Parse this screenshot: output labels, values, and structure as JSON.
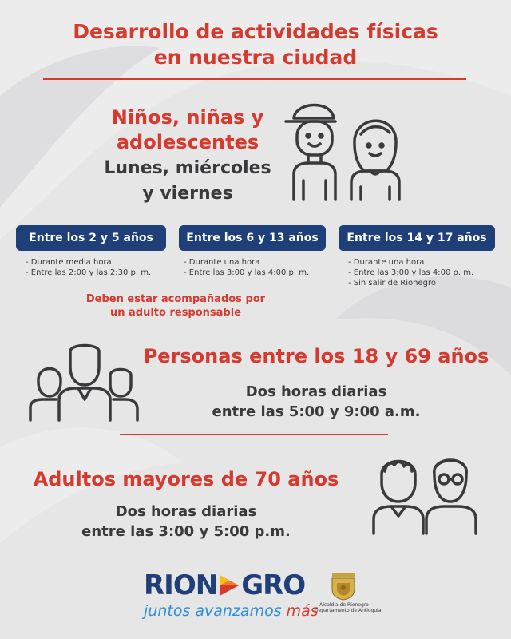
{
  "title": {
    "line1": "Desarrollo de actividades físicas",
    "line2": "en nuestra ciudad"
  },
  "kids": {
    "heading_line1": "Niños, niñas y",
    "heading_line2": "adolescentes",
    "days_line1": "Lunes, miércoles",
    "days_line2": "y viernes",
    "icon": "boy-and-girl-icon"
  },
  "age_groups": [
    {
      "label": "Entre los 2 y 5 años",
      "bullets": [
        "- Durante media hora",
        "- Entre las 2:00 y las 2:30 p. m."
      ]
    },
    {
      "label": "Entre los 6 y 13 años",
      "bullets": [
        "- Durante una hora",
        "- Entre las 3:00 y las 4:00 p. m."
      ]
    },
    {
      "label": "Entre los 14 y 17 años",
      "bullets": [
        "- Durante una hora",
        "- Entre las 3:00 y las 4:00 p. m.",
        "- Sin salir de Rionegro"
      ]
    }
  ],
  "notice": {
    "line1": "Deben estar acompañados por",
    "line2": "un adulto responsable"
  },
  "adults": {
    "heading": "Personas entre los 18 y 69 años",
    "line1": "Dos horas diarias",
    "line2": "entre las 5:00 y 9:00 a.m.",
    "icon": "group-of-people-icon"
  },
  "seniors": {
    "heading": "Adultos mayores de 70 años",
    "line1": "Dos horas diarias",
    "line2": "entre las 3:00 y 5:00 p.m.",
    "icon": "elderly-couple-icon"
  },
  "footer": {
    "logo_part1": "RION",
    "logo_part2": "GRO",
    "tagline": "juntos avanzamos",
    "tagline_accent": "más",
    "alcaldia_line1": "Alcaldía de Rionegro",
    "alcaldia_line2": "Departamento de Antioquia",
    "seal_icon": "coat-of-arms-icon"
  },
  "colors": {
    "accent_red": "#d63a2f",
    "navy": "#1f3f79",
    "text_dark": "#3a3a3c",
    "background": "#e6e6e7",
    "tagline_blue": "#2f8fd6"
  }
}
